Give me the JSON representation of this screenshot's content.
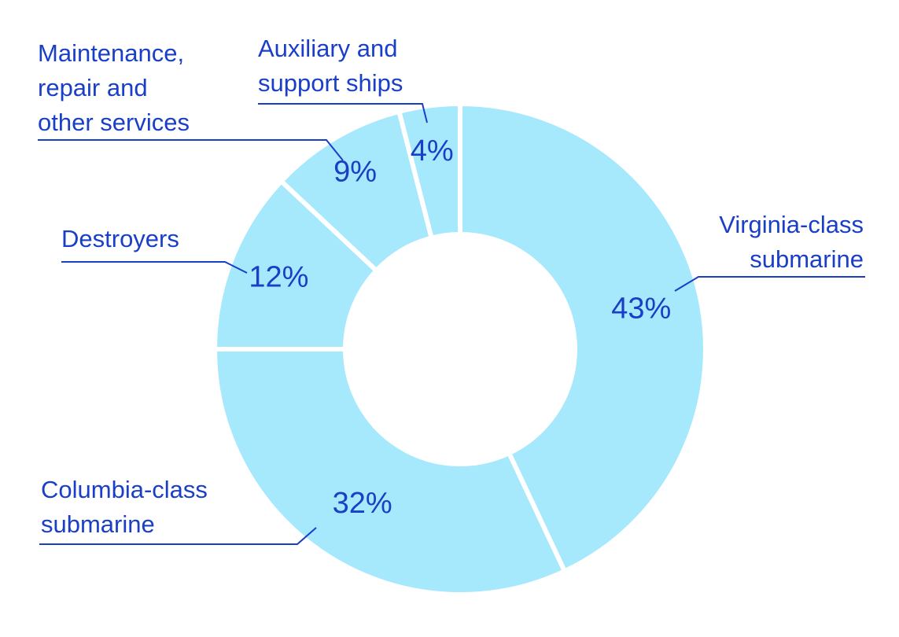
{
  "chart_data": {
    "type": "pie",
    "variant": "donut",
    "title": "",
    "categories": [
      "Virginia-class submarine",
      "Columbia-class submarine",
      "Destroyers",
      "Maintenance, repair and other services",
      "Auxiliary and support ships"
    ],
    "values": [
      43,
      32,
      12,
      9,
      4
    ],
    "value_labels": [
      "43%",
      "32%",
      "12%",
      "9%",
      "4%"
    ],
    "label_lines": [
      [
        "Virginia-class",
        "submarine"
      ],
      [
        "Columbia-class",
        "submarine"
      ],
      [
        "Destroyers"
      ],
      [
        "Maintenance,",
        "repair and",
        "other services"
      ],
      [
        "Auxiliary and",
        "support ships"
      ]
    ],
    "legend": "none",
    "slice_color": "#a6e8fc",
    "text_color": "#1a3fc7",
    "line_color": "#1a3fc7",
    "separator_color": "#ffffff"
  }
}
